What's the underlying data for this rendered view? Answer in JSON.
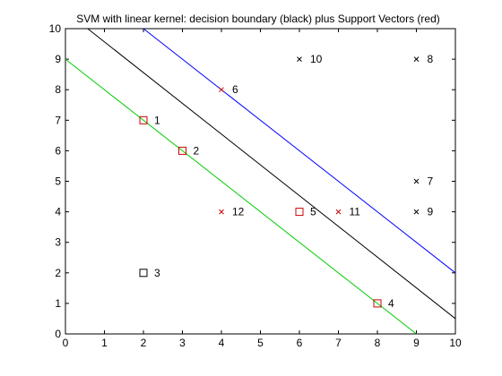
{
  "chart_data": {
    "type": "scatter",
    "title": "SVM with linear kernel: decision boundary (black) plus Support Vectors (red)",
    "xlabel": "",
    "ylabel": "",
    "xlim": [
      0,
      10
    ],
    "ylim": [
      0,
      10
    ],
    "xticks": [
      "0",
      "1",
      "2",
      "3",
      "4",
      "5",
      "6",
      "7",
      "8",
      "9",
      "10"
    ],
    "yticks": [
      "0",
      "1",
      "2",
      "3",
      "4",
      "5",
      "6",
      "7",
      "8",
      "9",
      "10"
    ],
    "grid": false,
    "lines": [
      {
        "color": "#000000",
        "x": [
          0.57,
          10
        ],
        "y": [
          10,
          0.5
        ]
      },
      {
        "color": "#0000ff",
        "x": [
          2,
          10
        ],
        "y": [
          10,
          2
        ]
      },
      {
        "color": "#00cc00",
        "x": [
          0,
          9
        ],
        "y": [
          9,
          0
        ]
      }
    ],
    "points": [
      {
        "label": "1",
        "x": 2,
        "y": 7,
        "marker": "square",
        "color": "#cc0000"
      },
      {
        "label": "2",
        "x": 3,
        "y": 6,
        "marker": "square",
        "color": "#cc0000"
      },
      {
        "label": "3",
        "x": 2,
        "y": 2,
        "marker": "square",
        "color": "#000000"
      },
      {
        "label": "4",
        "x": 8,
        "y": 1,
        "marker": "square",
        "color": "#cc0000"
      },
      {
        "label": "5",
        "x": 6,
        "y": 4,
        "marker": "square",
        "color": "#cc0000"
      },
      {
        "label": "6",
        "x": 4,
        "y": 8,
        "marker": "cross",
        "color": "#cc0000"
      },
      {
        "label": "7",
        "x": 9,
        "y": 5,
        "marker": "cross",
        "color": "#000000"
      },
      {
        "label": "8",
        "x": 9,
        "y": 9,
        "marker": "cross",
        "color": "#000000"
      },
      {
        "label": "9",
        "x": 9,
        "y": 4,
        "marker": "cross",
        "color": "#000000"
      },
      {
        "label": "10",
        "x": 6,
        "y": 9,
        "marker": "cross",
        "color": "#000000"
      },
      {
        "label": "11",
        "x": 7,
        "y": 4,
        "marker": "cross",
        "color": "#cc0000"
      },
      {
        "label": "12",
        "x": 4,
        "y": 4,
        "marker": "cross",
        "color": "#cc0000"
      }
    ]
  }
}
